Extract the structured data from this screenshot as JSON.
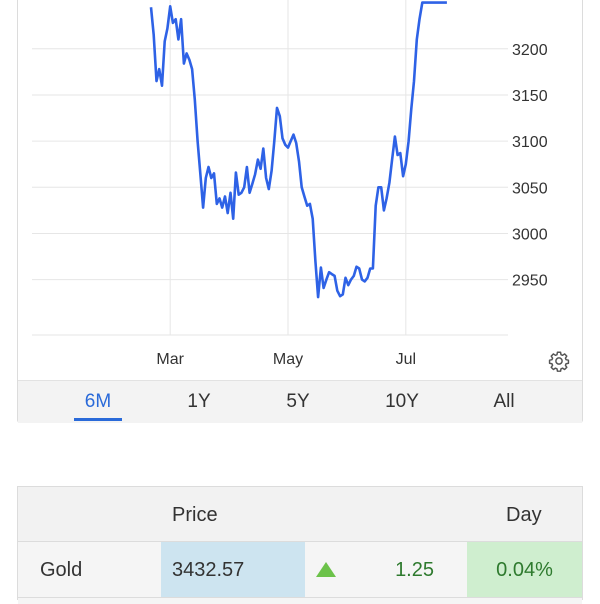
{
  "chart_data": {
    "type": "line",
    "x": [
      "Feb 20",
      "Feb 21",
      "Feb 24",
      "Feb 25",
      "Feb 26",
      "Feb 27",
      "Feb 28",
      "Mar 3",
      "Mar 4",
      "Mar 5",
      "Mar 6",
      "Mar 7",
      "Mar 10",
      "Mar 11",
      "Mar 12",
      "Mar 13",
      "Mar 14",
      "Mar 17",
      "Mar 18",
      "Mar 19",
      "Mar 20",
      "Mar 21",
      "Mar 24",
      "Mar 25",
      "Mar 26",
      "Mar 27",
      "Mar 28",
      "Mar 31",
      "Apr 1",
      "Apr 2",
      "Apr 3",
      "Apr 4",
      "Apr 7",
      "Apr 8",
      "Apr 9",
      "Apr 10",
      "Apr 11",
      "Apr 14",
      "Apr 15",
      "Apr 16",
      "Apr 17",
      "Apr 18",
      "Apr 21",
      "Apr 22",
      "Apr 23",
      "Apr 24",
      "Apr 25",
      "Apr 28",
      "Apr 29",
      "Apr 30",
      "May 1",
      "May 2",
      "May 5",
      "May 6",
      "May 7",
      "May 8",
      "May 9",
      "May 12",
      "May 13",
      "May 14",
      "May 15",
      "May 16",
      "May 19",
      "May 20",
      "May 21",
      "May 22",
      "May 23",
      "May 26",
      "May 27",
      "May 28",
      "May 29",
      "May 30",
      "Jun 2",
      "Jun 3",
      "Jun 4",
      "Jun 5",
      "Jun 6",
      "Jun 9",
      "Jun 10",
      "Jun 11",
      "Jun 12",
      "Jun 13",
      "Jun 16",
      "Jun 17",
      "Jun 18",
      "Jun 19",
      "Jun 20",
      "Jun 23",
      "Jun 24",
      "Jun 25",
      "Jun 26",
      "Jun 27",
      "Jun 30",
      "Jul 1",
      "Jul 2",
      "Jul 3",
      "Jul 4",
      "Jul 7",
      "Jul 8",
      "Jul 9",
      "Jul 10",
      "Jul 11",
      "Jul 14",
      "Jul 15",
      "Jul 16",
      "Jul 17",
      "Jul 18",
      "Jul 21",
      "Jul 22"
    ],
    "series": [
      {
        "values": [
          3245,
          3215,
          3165,
          3178,
          3160,
          3208,
          3222,
          3246,
          3228,
          3232,
          3210,
          3232,
          3184,
          3195,
          3188,
          3178,
          3145,
          3100,
          3065,
          3028,
          3060,
          3072,
          3060,
          3065,
          3032,
          3038,
          3028,
          3040,
          3022,
          3044,
          3016,
          3066,
          3042,
          3044,
          3050,
          3072,
          3044,
          3054,
          3064,
          3080,
          3070,
          3092,
          3060,
          3048,
          3068,
          3100,
          3136,
          3127,
          3103,
          3096,
          3093,
          3100,
          3107,
          3098,
          3078,
          3050,
          3040,
          3030,
          3032,
          3016,
          2970,
          2931,
          2963,
          2941,
          2950,
          2958,
          2956,
          2954,
          2938,
          2932,
          2934,
          2952,
          2944,
          2950,
          2954,
          2964,
          2962,
          2950,
          2948,
          2952,
          2962,
          2962,
          3030,
          3050,
          3050,
          3025,
          3038,
          3055,
          3080,
          3105,
          3085,
          3087,
          3062,
          3075,
          3100,
          3135,
          3165,
          3210,
          3232,
          3250,
          3250,
          3250,
          3250,
          3250,
          3250,
          3250,
          3250,
          3250,
          3250
        ]
      }
    ],
    "y_ticks": [
      "3200",
      "3150",
      "3100",
      "3050",
      "3000",
      "2950"
    ],
    "x_ticks": [
      {
        "label": "Mar",
        "at": "Mar 3"
      },
      {
        "label": "May",
        "at": "May 1"
      },
      {
        "label": "Jul",
        "at": "Jul 1"
      }
    ],
    "ylim": [
      2890,
      3255
    ],
    "grid": true,
    "color": "#2e62e6"
  },
  "range_tabs": [
    "6M",
    "1Y",
    "5Y",
    "10Y",
    "All"
  ],
  "active_range": "6M",
  "quote_table": {
    "headers": {
      "price": "Price",
      "day": "Day"
    },
    "row": {
      "name": "Gold",
      "price": "3432.57",
      "change": "1.25",
      "change_pct": "0.04%",
      "direction_icon": "up-triangle-icon"
    }
  },
  "colors": {
    "accent": "#2a6ad9",
    "up": "#2e7a2e",
    "up_arrow": "#6cc24a",
    "price_bg": "#cde4f0",
    "pct_bg": "#cfeecf"
  }
}
